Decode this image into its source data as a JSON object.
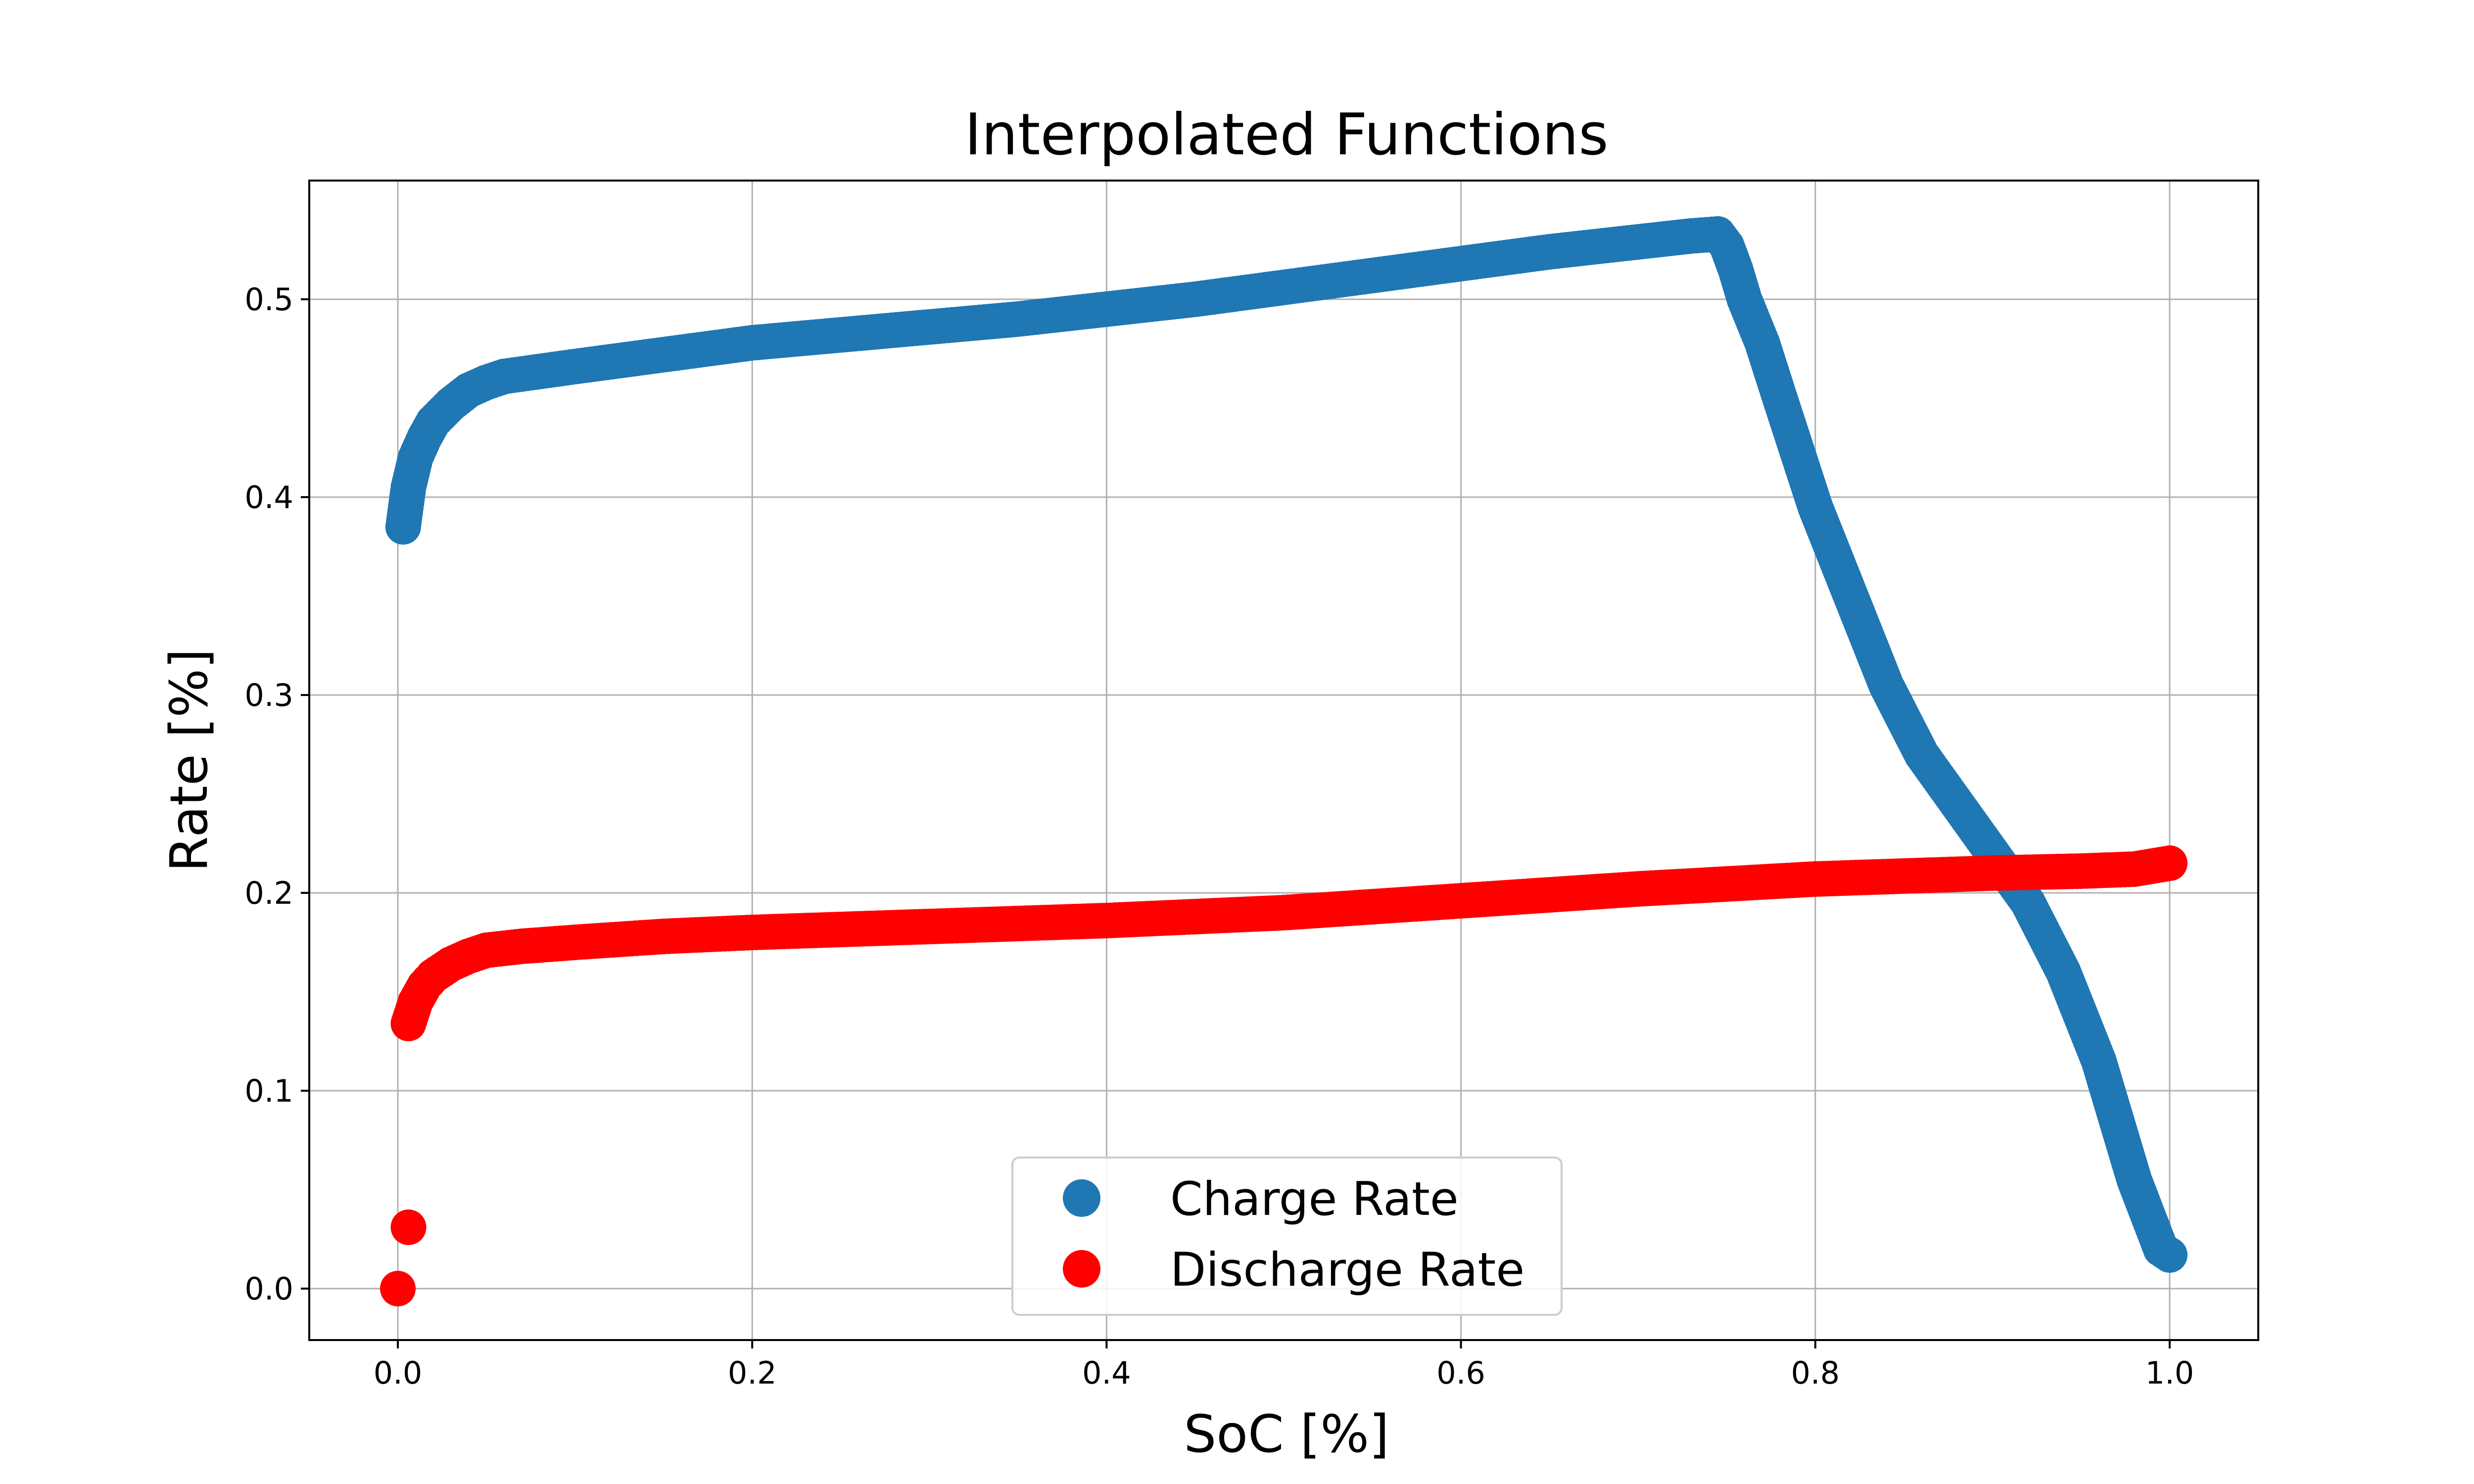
{
  "chart_data": {
    "type": "scatter",
    "title": "Interpolated Functions",
    "xlabel": "SoC [%]",
    "ylabel": "Rate [%]",
    "xlim": [
      -0.05,
      1.05
    ],
    "ylim": [
      -0.026,
      0.56
    ],
    "grid": true,
    "legend_placement": "lower center",
    "xticks": [
      0.0,
      0.2,
      0.4,
      0.6,
      0.8,
      1.0
    ],
    "xtick_labels": [
      "0.0",
      "0.2",
      "0.4",
      "0.6",
      "0.8",
      "1.0"
    ],
    "yticks": [
      0.0,
      0.1,
      0.2,
      0.3,
      0.4,
      0.5
    ],
    "ytick_labels": [
      "0.0",
      "0.1",
      "0.2",
      "0.3",
      "0.4",
      "0.5"
    ],
    "series": [
      {
        "name": "Charge Rate",
        "color": "#1f77b4",
        "points": [
          [
            0.003,
            0.385
          ],
          [
            0.006,
            0.405
          ],
          [
            0.01,
            0.42
          ],
          [
            0.015,
            0.43
          ],
          [
            0.02,
            0.438
          ],
          [
            0.03,
            0.447
          ],
          [
            0.04,
            0.454
          ],
          [
            0.05,
            0.458
          ],
          [
            0.06,
            0.461
          ],
          [
            0.1,
            0.466
          ],
          [
            0.15,
            0.472
          ],
          [
            0.2,
            0.478
          ],
          [
            0.25,
            0.482
          ],
          [
            0.3,
            0.486
          ],
          [
            0.35,
            0.49
          ],
          [
            0.4,
            0.495
          ],
          [
            0.45,
            0.5
          ],
          [
            0.5,
            0.506
          ],
          [
            0.55,
            0.512
          ],
          [
            0.6,
            0.518
          ],
          [
            0.65,
            0.524
          ],
          [
            0.7,
            0.529
          ],
          [
            0.73,
            0.532
          ],
          [
            0.745,
            0.533
          ],
          [
            0.75,
            0.527
          ],
          [
            0.755,
            0.515
          ],
          [
            0.76,
            0.5
          ],
          [
            0.77,
            0.478
          ],
          [
            0.78,
            0.45
          ],
          [
            0.8,
            0.395
          ],
          [
            0.82,
            0.35
          ],
          [
            0.84,
            0.305
          ],
          [
            0.86,
            0.27
          ],
          [
            0.88,
            0.245
          ],
          [
            0.9,
            0.22
          ],
          [
            0.92,
            0.195
          ],
          [
            0.94,
            0.16
          ],
          [
            0.96,
            0.115
          ],
          [
            0.98,
            0.055
          ],
          [
            0.995,
            0.02
          ],
          [
            1.0,
            0.017
          ]
        ]
      },
      {
        "name": "Discharge Rate",
        "color": "#ff0000",
        "points": [
          [
            0.0,
            0.0
          ],
          [
            0.006,
            0.031
          ],
          [
            0.006,
            0.134
          ],
          [
            0.01,
            0.145
          ],
          [
            0.015,
            0.153
          ],
          [
            0.02,
            0.158
          ],
          [
            0.03,
            0.164
          ],
          [
            0.04,
            0.168
          ],
          [
            0.05,
            0.171
          ],
          [
            0.07,
            0.173
          ],
          [
            0.1,
            0.175
          ],
          [
            0.15,
            0.178
          ],
          [
            0.2,
            0.18
          ],
          [
            0.3,
            0.183
          ],
          [
            0.4,
            0.186
          ],
          [
            0.5,
            0.19
          ],
          [
            0.6,
            0.196
          ],
          [
            0.7,
            0.202
          ],
          [
            0.8,
            0.207
          ],
          [
            0.9,
            0.21
          ],
          [
            0.95,
            0.211
          ],
          [
            0.98,
            0.212
          ],
          [
            1.0,
            0.215
          ]
        ]
      }
    ]
  }
}
